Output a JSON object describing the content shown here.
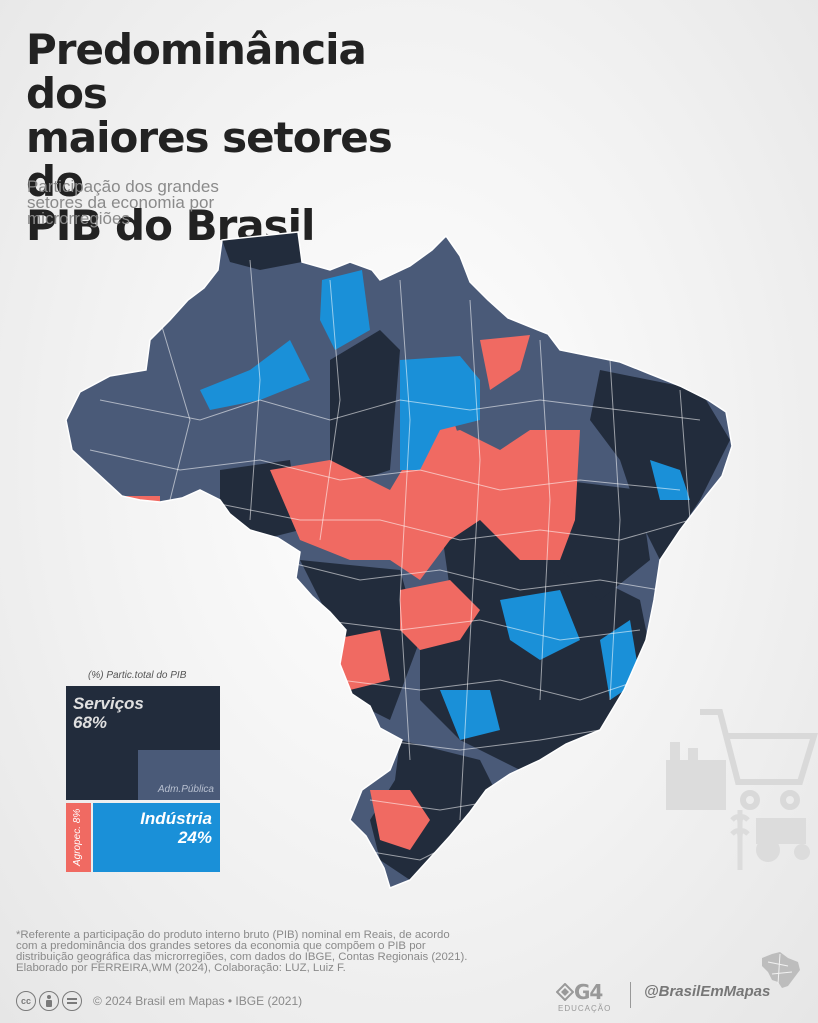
{
  "title": {
    "lines": [
      "Predominância dos",
      "maiores setores do",
      "PIB do Brasil"
    ]
  },
  "subtitle": {
    "lines": [
      "Participação dos grandes",
      "setores da economia por",
      "microrregiões"
    ]
  },
  "legend": {
    "caption": "(%) Partic.total do PIB",
    "items": {
      "servicos": {
        "label": "Serviços",
        "value": "68%",
        "color": "#222c3c"
      },
      "adm_publica": {
        "label": "Adm.Pública",
        "color": "#4a5a78"
      },
      "agropecuaria": {
        "label": "Agropec. 8%",
        "color": "#f06a62"
      },
      "industria": {
        "label": "Indústria",
        "value": "24%",
        "color": "#1a90d8"
      }
    }
  },
  "map": {
    "colors": {
      "servicos": "#222c3c",
      "adm_publica": "#4a5a78",
      "agropecuaria": "#f06a62",
      "industria": "#1a90d8",
      "border": "#ffffff"
    }
  },
  "footnote": {
    "lines": [
      "*Referente a participação do produto interno bruto (PIB) nominal em Reais, de acordo",
      "com  a predominância dos grandes setores da economia que compõem o PIB por",
      "distribuição geográfica das microrregiões, com dados do IBGE, Contas Regionais (2021).",
      "Elaborado por FERREIRA,WM (2024), Colaboração: LUZ, Luiz F."
    ]
  },
  "license": {
    "icons": [
      "cc",
      "by",
      "nd"
    ],
    "text": "© 2024 Brasil em Mapas • IBGE (2021)"
  },
  "brand": {
    "g4_mark": "G4",
    "g4_sub": "EDUCAÇÃO",
    "handle": "@BrasilEmMapas"
  }
}
